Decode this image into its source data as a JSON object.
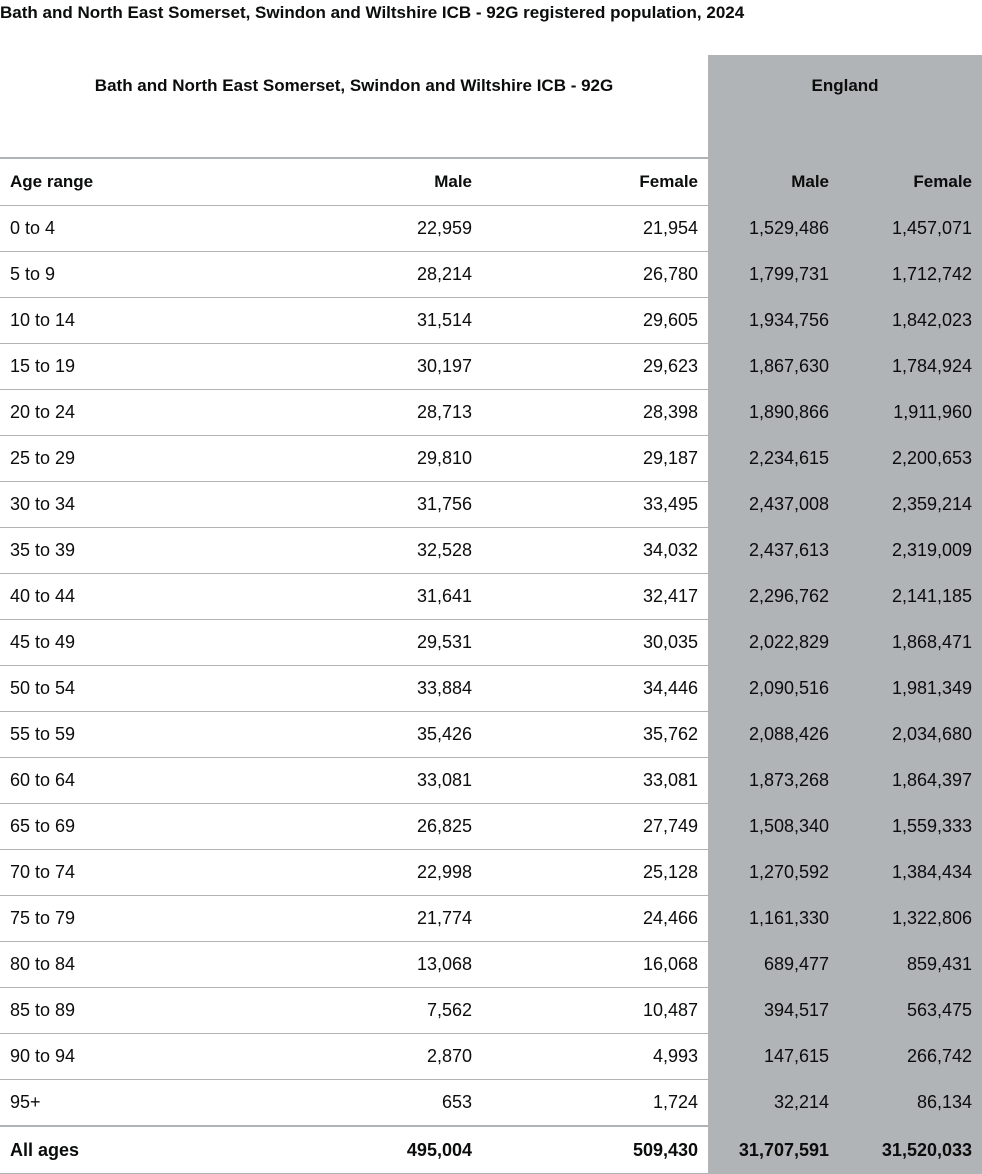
{
  "caption": "Bath and North East Somerset, Swindon and Wiltshire ICB - 92G registered population, 2024",
  "table": {
    "group_headers": {
      "local": "Bath and North East Somerset, Swindon and Wiltshire ICB - 92G",
      "england": "England"
    },
    "column_headers": {
      "age": "Age range",
      "local_male": "Male",
      "local_female": "Female",
      "eng_male": "Male",
      "eng_female": "Female"
    },
    "rows": [
      {
        "age": "0 to 4",
        "local_male": "22,959",
        "local_female": "21,954",
        "eng_male": "1,529,486",
        "eng_female": "1,457,071"
      },
      {
        "age": "5 to 9",
        "local_male": "28,214",
        "local_female": "26,780",
        "eng_male": "1,799,731",
        "eng_female": "1,712,742"
      },
      {
        "age": "10 to 14",
        "local_male": "31,514",
        "local_female": "29,605",
        "eng_male": "1,934,756",
        "eng_female": "1,842,023"
      },
      {
        "age": "15 to 19",
        "local_male": "30,197",
        "local_female": "29,623",
        "eng_male": "1,867,630",
        "eng_female": "1,784,924"
      },
      {
        "age": "20 to 24",
        "local_male": "28,713",
        "local_female": "28,398",
        "eng_male": "1,890,866",
        "eng_female": "1,911,960"
      },
      {
        "age": "25 to 29",
        "local_male": "29,810",
        "local_female": "29,187",
        "eng_male": "2,234,615",
        "eng_female": "2,200,653"
      },
      {
        "age": "30 to 34",
        "local_male": "31,756",
        "local_female": "33,495",
        "eng_male": "2,437,008",
        "eng_female": "2,359,214"
      },
      {
        "age": "35 to 39",
        "local_male": "32,528",
        "local_female": "34,032",
        "eng_male": "2,437,613",
        "eng_female": "2,319,009"
      },
      {
        "age": "40 to 44",
        "local_male": "31,641",
        "local_female": "32,417",
        "eng_male": "2,296,762",
        "eng_female": "2,141,185"
      },
      {
        "age": "45 to 49",
        "local_male": "29,531",
        "local_female": "30,035",
        "eng_male": "2,022,829",
        "eng_female": "1,868,471"
      },
      {
        "age": "50 to 54",
        "local_male": "33,884",
        "local_female": "34,446",
        "eng_male": "2,090,516",
        "eng_female": "1,981,349"
      },
      {
        "age": "55 to 59",
        "local_male": "35,426",
        "local_female": "35,762",
        "eng_male": "2,088,426",
        "eng_female": "2,034,680"
      },
      {
        "age": "60 to 64",
        "local_male": "33,081",
        "local_female": "33,081",
        "eng_male": "1,873,268",
        "eng_female": "1,864,397"
      },
      {
        "age": "65 to 69",
        "local_male": "26,825",
        "local_female": "27,749",
        "eng_male": "1,508,340",
        "eng_female": "1,559,333"
      },
      {
        "age": "70 to 74",
        "local_male": "22,998",
        "local_female": "25,128",
        "eng_male": "1,270,592",
        "eng_female": "1,384,434"
      },
      {
        "age": "75 to 79",
        "local_male": "21,774",
        "local_female": "24,466",
        "eng_male": "1,161,330",
        "eng_female": "1,322,806"
      },
      {
        "age": "80 to 84",
        "local_male": "13,068",
        "local_female": "16,068",
        "eng_male": "689,477",
        "eng_female": "859,431"
      },
      {
        "age": "85 to 89",
        "local_male": "7,562",
        "local_female": "10,487",
        "eng_male": "394,517",
        "eng_female": "563,475"
      },
      {
        "age": "90 to 94",
        "local_male": "2,870",
        "local_female": "4,993",
        "eng_male": "147,615",
        "eng_female": "266,742"
      },
      {
        "age": "95+",
        "local_male": "653",
        "local_female": "1,724",
        "eng_male": "32,214",
        "eng_female": "86,134"
      }
    ],
    "total": {
      "age": "All ages",
      "local_male": "495,004",
      "local_female": "509,430",
      "eng_male": "31,707,591",
      "eng_female": "31,520,033"
    }
  },
  "colors": {
    "england_column_bg": "#b1b4b6",
    "border": "#b1b4b6",
    "text": "#0b0c0c"
  }
}
